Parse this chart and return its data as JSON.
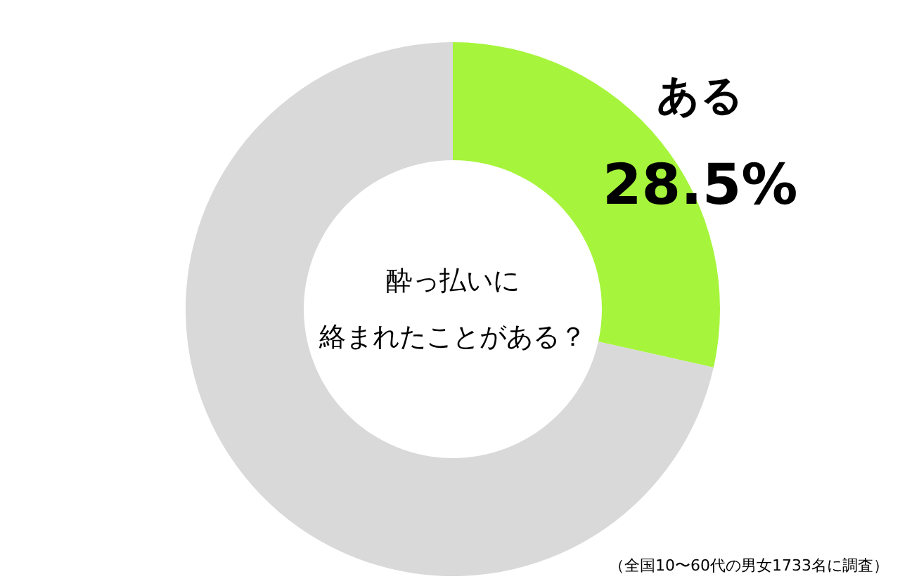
{
  "chart_data": {
    "type": "donut",
    "title": "酔っ払いに絡まれたことがある？",
    "categories": [
      "ある",
      null
    ],
    "values": [
      28.5,
      71.5
    ],
    "colors": [
      "#a6f53c",
      "#d9d9d9"
    ],
    "value_labels": [
      "28.5%",
      null
    ],
    "annotations": [
      "（全国10〜60代の男女1733名に調査）"
    ]
  }
}
